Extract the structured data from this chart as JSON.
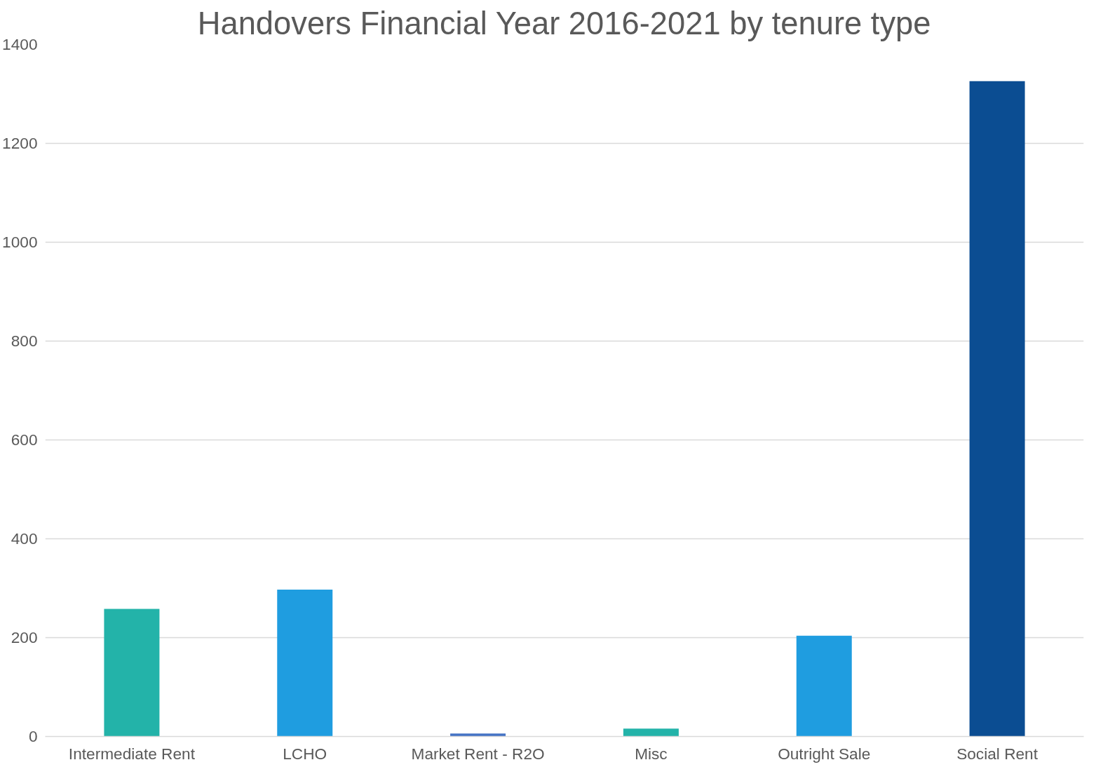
{
  "chart_data": {
    "type": "bar",
    "title": "Handovers Financial Year 2016-2021 by tenure type",
    "categories": [
      "Intermediate Rent",
      "LCHO",
      "Market Rent - R2O",
      "Misc",
      "Outright Sale",
      "Social Rent"
    ],
    "values": [
      258,
      297,
      6,
      16,
      204,
      1326
    ],
    "colors": [
      "#23b3a9",
      "#1f9de0",
      "#4472c4",
      "#23b3a9",
      "#1f9de0",
      "#0b4d92"
    ],
    "ylim": [
      0,
      1400
    ],
    "yticks": [
      0,
      200,
      400,
      600,
      800,
      1000,
      1200,
      1400
    ],
    "grid": "y"
  }
}
